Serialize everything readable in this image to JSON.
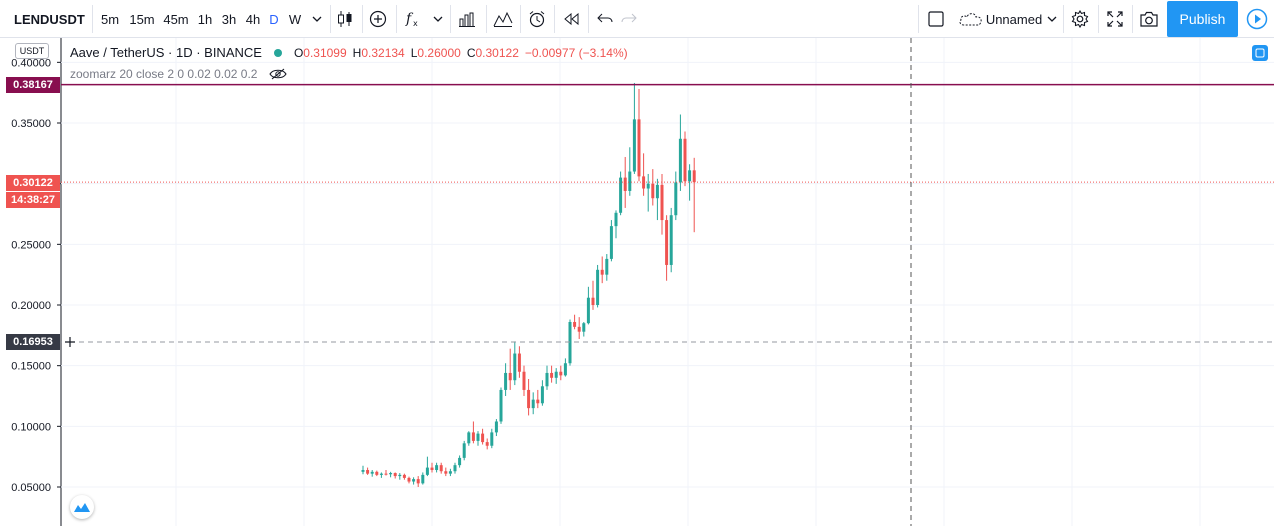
{
  "toolbar": {
    "symbol": "LENDUSDT",
    "timeframes": [
      {
        "label": "5m",
        "active": false
      },
      {
        "label": "15m",
        "active": false
      },
      {
        "label": "45m",
        "active": false
      },
      {
        "label": "1h",
        "active": false
      },
      {
        "label": "3h",
        "active": false
      },
      {
        "label": "4h",
        "active": false
      },
      {
        "label": "D",
        "active": true
      },
      {
        "label": "W",
        "active": false
      }
    ],
    "layout_name": "Unnamed",
    "publish_label": "Publish"
  },
  "legend": {
    "title": "Aave / TetherUS · 1D · BINANCE",
    "open_label": "O",
    "open": "0.31099",
    "high_label": "H",
    "high": "0.32134",
    "low_label": "L",
    "low": "0.26000",
    "close_label": "C",
    "close": "0.30122",
    "change": "−0.00977 (−3.14%)",
    "indicator": "zoomarz 20 close 2 0 0.02 0.02 0.2"
  },
  "price_axis": {
    "currency_badge": "USDT",
    "ticks": [
      "0.40000",
      "0.35000",
      "0.30000",
      "0.25000",
      "0.20000",
      "0.15000",
      "0.10000",
      "0.05000"
    ],
    "hline_label": "0.38167",
    "last_price": "0.30122",
    "countdown": "14:38:27",
    "crosshair_price": "0.16953"
  },
  "colors": {
    "up": "#26a69a",
    "down": "#ef5350",
    "hline": "#880e4f",
    "crosshair": "#9598a1",
    "grid": "#f0f3fa",
    "accent": "#2196f3"
  },
  "chart_data": {
    "type": "candlestick",
    "symbol": "LENDUSDT",
    "ylim": [
      0.03,
      0.41
    ],
    "horizontal_line": 0.38167,
    "last_price": 0.30122,
    "crosshair_price": 0.16953,
    "candles": [
      [
        0.0625,
        0.0675,
        0.0605,
        0.064
      ],
      [
        0.064,
        0.066,
        0.06,
        0.061
      ],
      [
        0.061,
        0.064,
        0.0585,
        0.0625
      ],
      [
        0.0625,
        0.0635,
        0.059,
        0.06
      ],
      [
        0.06,
        0.062,
        0.0575,
        0.061
      ],
      [
        0.061,
        0.064,
        0.0595,
        0.0605
      ],
      [
        0.0605,
        0.0625,
        0.058,
        0.0615
      ],
      [
        0.0615,
        0.062,
        0.057,
        0.059
      ],
      [
        0.059,
        0.0615,
        0.056,
        0.06
      ],
      [
        0.06,
        0.061,
        0.056,
        0.0575
      ],
      [
        0.0575,
        0.0585,
        0.053,
        0.0545
      ],
      [
        0.0545,
        0.058,
        0.052,
        0.0565
      ],
      [
        0.0565,
        0.059,
        0.05,
        0.053
      ],
      [
        0.053,
        0.062,
        0.052,
        0.06
      ],
      [
        0.06,
        0.075,
        0.059,
        0.066
      ],
      [
        0.066,
        0.07,
        0.062,
        0.064
      ],
      [
        0.064,
        0.07,
        0.062,
        0.068
      ],
      [
        0.068,
        0.07,
        0.061,
        0.063
      ],
      [
        0.063,
        0.066,
        0.059,
        0.061
      ],
      [
        0.061,
        0.065,
        0.059,
        0.063
      ],
      [
        0.063,
        0.07,
        0.061,
        0.068
      ],
      [
        0.068,
        0.076,
        0.066,
        0.074
      ],
      [
        0.074,
        0.088,
        0.072,
        0.086
      ],
      [
        0.086,
        0.096,
        0.084,
        0.095
      ],
      [
        0.095,
        0.104,
        0.086,
        0.088
      ],
      [
        0.088,
        0.096,
        0.084,
        0.094
      ],
      [
        0.094,
        0.098,
        0.085,
        0.087
      ],
      [
        0.087,
        0.09,
        0.081,
        0.084
      ],
      [
        0.084,
        0.098,
        0.082,
        0.095
      ],
      [
        0.095,
        0.106,
        0.092,
        0.104
      ],
      [
        0.104,
        0.132,
        0.102,
        0.13
      ],
      [
        0.13,
        0.152,
        0.125,
        0.144
      ],
      [
        0.144,
        0.164,
        0.13,
        0.138
      ],
      [
        0.138,
        0.17,
        0.134,
        0.16
      ],
      [
        0.16,
        0.166,
        0.14,
        0.145
      ],
      [
        0.145,
        0.15,
        0.125,
        0.13
      ],
      [
        0.13,
        0.139,
        0.109,
        0.115
      ],
      [
        0.115,
        0.128,
        0.11,
        0.122
      ],
      [
        0.122,
        0.13,
        0.115,
        0.119
      ],
      [
        0.119,
        0.138,
        0.117,
        0.133
      ],
      [
        0.133,
        0.15,
        0.13,
        0.144
      ],
      [
        0.144,
        0.15,
        0.136,
        0.14
      ],
      [
        0.14,
        0.148,
        0.135,
        0.145
      ],
      [
        0.145,
        0.15,
        0.138,
        0.142
      ],
      [
        0.142,
        0.156,
        0.141,
        0.152
      ],
      [
        0.152,
        0.188,
        0.15,
        0.186
      ],
      [
        0.186,
        0.192,
        0.18,
        0.182
      ],
      [
        0.182,
        0.19,
        0.172,
        0.178
      ],
      [
        0.178,
        0.186,
        0.174,
        0.185
      ],
      [
        0.185,
        0.215,
        0.184,
        0.206
      ],
      [
        0.206,
        0.22,
        0.196,
        0.2
      ],
      [
        0.2,
        0.233,
        0.198,
        0.229
      ],
      [
        0.229,
        0.24,
        0.218,
        0.225
      ],
      [
        0.225,
        0.242,
        0.22,
        0.238
      ],
      [
        0.238,
        0.27,
        0.236,
        0.265
      ],
      [
        0.265,
        0.278,
        0.255,
        0.276
      ],
      [
        0.276,
        0.31,
        0.274,
        0.305
      ],
      [
        0.305,
        0.322,
        0.28,
        0.294
      ],
      [
        0.294,
        0.33,
        0.29,
        0.31
      ],
      [
        0.31,
        0.383,
        0.308,
        0.353
      ],
      [
        0.353,
        0.378,
        0.302,
        0.306
      ],
      [
        0.306,
        0.325,
        0.29,
        0.296
      ],
      [
        0.296,
        0.308,
        0.277,
        0.3
      ],
      [
        0.3,
        0.312,
        0.282,
        0.288
      ],
      [
        0.288,
        0.304,
        0.27,
        0.299
      ],
      [
        0.299,
        0.308,
        0.258,
        0.27
      ],
      [
        0.27,
        0.274,
        0.22,
        0.233
      ],
      [
        0.233,
        0.28,
        0.227,
        0.274
      ],
      [
        0.274,
        0.31,
        0.27,
        0.301
      ],
      [
        0.301,
        0.357,
        0.294,
        0.337
      ],
      [
        0.337,
        0.343,
        0.298,
        0.302
      ],
      [
        0.302,
        0.316,
        0.286,
        0.311
      ],
      [
        0.311,
        0.3213,
        0.26,
        0.3012
      ]
    ]
  }
}
